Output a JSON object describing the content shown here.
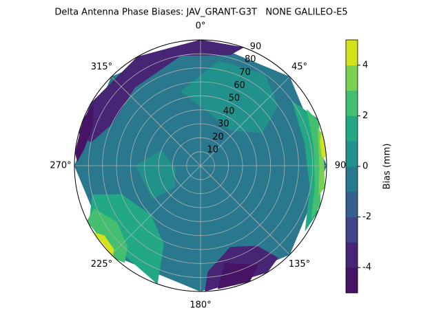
{
  "chart_data": {
    "type": "polar-contour",
    "title": "Delta Antenna Phase Biases: JAV_GRANT-G3T   NONE GALILEO-E5",
    "rlim": [
      0,
      90
    ],
    "rticks": [
      10,
      20,
      30,
      40,
      50,
      60,
      70,
      80,
      90
    ],
    "thetaticks": [
      {
        "value": 0,
        "label": "0°"
      },
      {
        "value": 45,
        "label": "45°"
      },
      {
        "value": 90,
        "label": "90"
      },
      {
        "value": 135,
        "label": "135°"
      },
      {
        "value": 180,
        "label": "180°"
      },
      {
        "value": 225,
        "label": "225°"
      },
      {
        "value": 270,
        "label": "270°"
      },
      {
        "value": 315,
        "label": "315°"
      }
    ],
    "grid": true,
    "colorbar": {
      "label": "Bias (mm)",
      "levels": [
        -5,
        -4,
        -3,
        -2,
        -1,
        0,
        1,
        2,
        3,
        4,
        5
      ],
      "colors": [
        "#471365",
        "#482475",
        "#414487",
        "#355f8d",
        "#2a788e",
        "#21918c",
        "#22a884",
        "#44bf70",
        "#7ad151",
        "#d2e21b"
      ],
      "ticks": [
        -4,
        -2,
        0,
        2,
        4
      ]
    },
    "regions": [
      {
        "value": -0.5,
        "points": [
          [
            0,
            90
          ],
          [
            45,
            90
          ],
          [
            90,
            90
          ],
          [
            135,
            90
          ],
          [
            180,
            90
          ],
          [
            225,
            90
          ],
          [
            270,
            90
          ],
          [
            315,
            90
          ]
        ]
      },
      {
        "value": 0.5,
        "points": [
          [
            345,
            55
          ],
          [
            10,
            76
          ],
          [
            35,
            80
          ],
          [
            52,
            70
          ],
          [
            62,
            50
          ],
          [
            40,
            33
          ],
          [
            10,
            38
          ]
        ]
      },
      {
        "value": 0.5,
        "points": [
          [
            235,
            42
          ],
          [
            270,
            46
          ],
          [
            292,
            30
          ],
          [
            262,
            18
          ],
          [
            230,
            24
          ]
        ]
      },
      {
        "value": -3.5,
        "points": [
          [
            282,
            80
          ],
          [
            285,
            90
          ],
          [
            300,
            90
          ],
          [
            330,
            90
          ],
          [
            0,
            90
          ],
          [
            20,
            90
          ],
          [
            15,
            82
          ],
          [
            350,
            80
          ],
          [
            320,
            73
          ],
          [
            295,
            70
          ]
        ]
      },
      {
        "value": -4.5,
        "points": [
          [
            272,
            88
          ],
          [
            276,
            90
          ],
          [
            292,
            90
          ],
          [
            300,
            88
          ],
          [
            290,
            82
          ],
          [
            278,
            84
          ]
        ]
      },
      {
        "value": 1.5,
        "points": [
          [
            55,
            80
          ],
          [
            68,
            90
          ],
          [
            112,
            90
          ],
          [
            122,
            88
          ],
          [
            102,
            80
          ],
          [
            78,
            76
          ]
        ]
      },
      {
        "value": 2.5,
        "points": [
          [
            62,
            86
          ],
          [
            70,
            90
          ],
          [
            108,
            90
          ],
          [
            116,
            88
          ],
          [
            100,
            83
          ],
          [
            80,
            82
          ]
        ]
      },
      {
        "value": 3.5,
        "points": [
          [
            72,
            88
          ],
          [
            76,
            90
          ],
          [
            100,
            90
          ],
          [
            104,
            87
          ],
          [
            90,
            85
          ]
        ]
      },
      {
        "value": 4.5,
        "points": [
          [
            74,
            90
          ],
          [
            86,
            90
          ],
          [
            86,
            87
          ],
          [
            79,
            87
          ]
        ]
      },
      {
        "value": -3.5,
        "points": [
          [
            140,
            86
          ],
          [
            148,
            90
          ],
          [
            178,
            90
          ],
          [
            176,
            76
          ],
          [
            160,
            62
          ],
          [
            145,
            70
          ]
        ]
      },
      {
        "value": -4.5,
        "points": [
          [
            150,
            82
          ],
          [
            157,
            90
          ],
          [
            172,
            89
          ],
          [
            166,
            72
          ]
        ]
      },
      {
        "value": 1.5,
        "points": [
          [
            200,
            90
          ],
          [
            242,
            90
          ],
          [
            255,
            80
          ],
          [
            250,
            60
          ],
          [
            225,
            50
          ],
          [
            205,
            62
          ]
        ]
      },
      {
        "value": 2.5,
        "points": [
          [
            218,
            88
          ],
          [
            222,
            90
          ],
          [
            244,
            90
          ],
          [
            248,
            82
          ],
          [
            236,
            72
          ],
          [
            222,
            78
          ]
        ]
      },
      {
        "value": 4.5,
        "points": [
          [
            224,
            90
          ],
          [
            238,
            90
          ],
          [
            234,
            85
          ],
          [
            226,
            86
          ]
        ]
      }
    ]
  }
}
